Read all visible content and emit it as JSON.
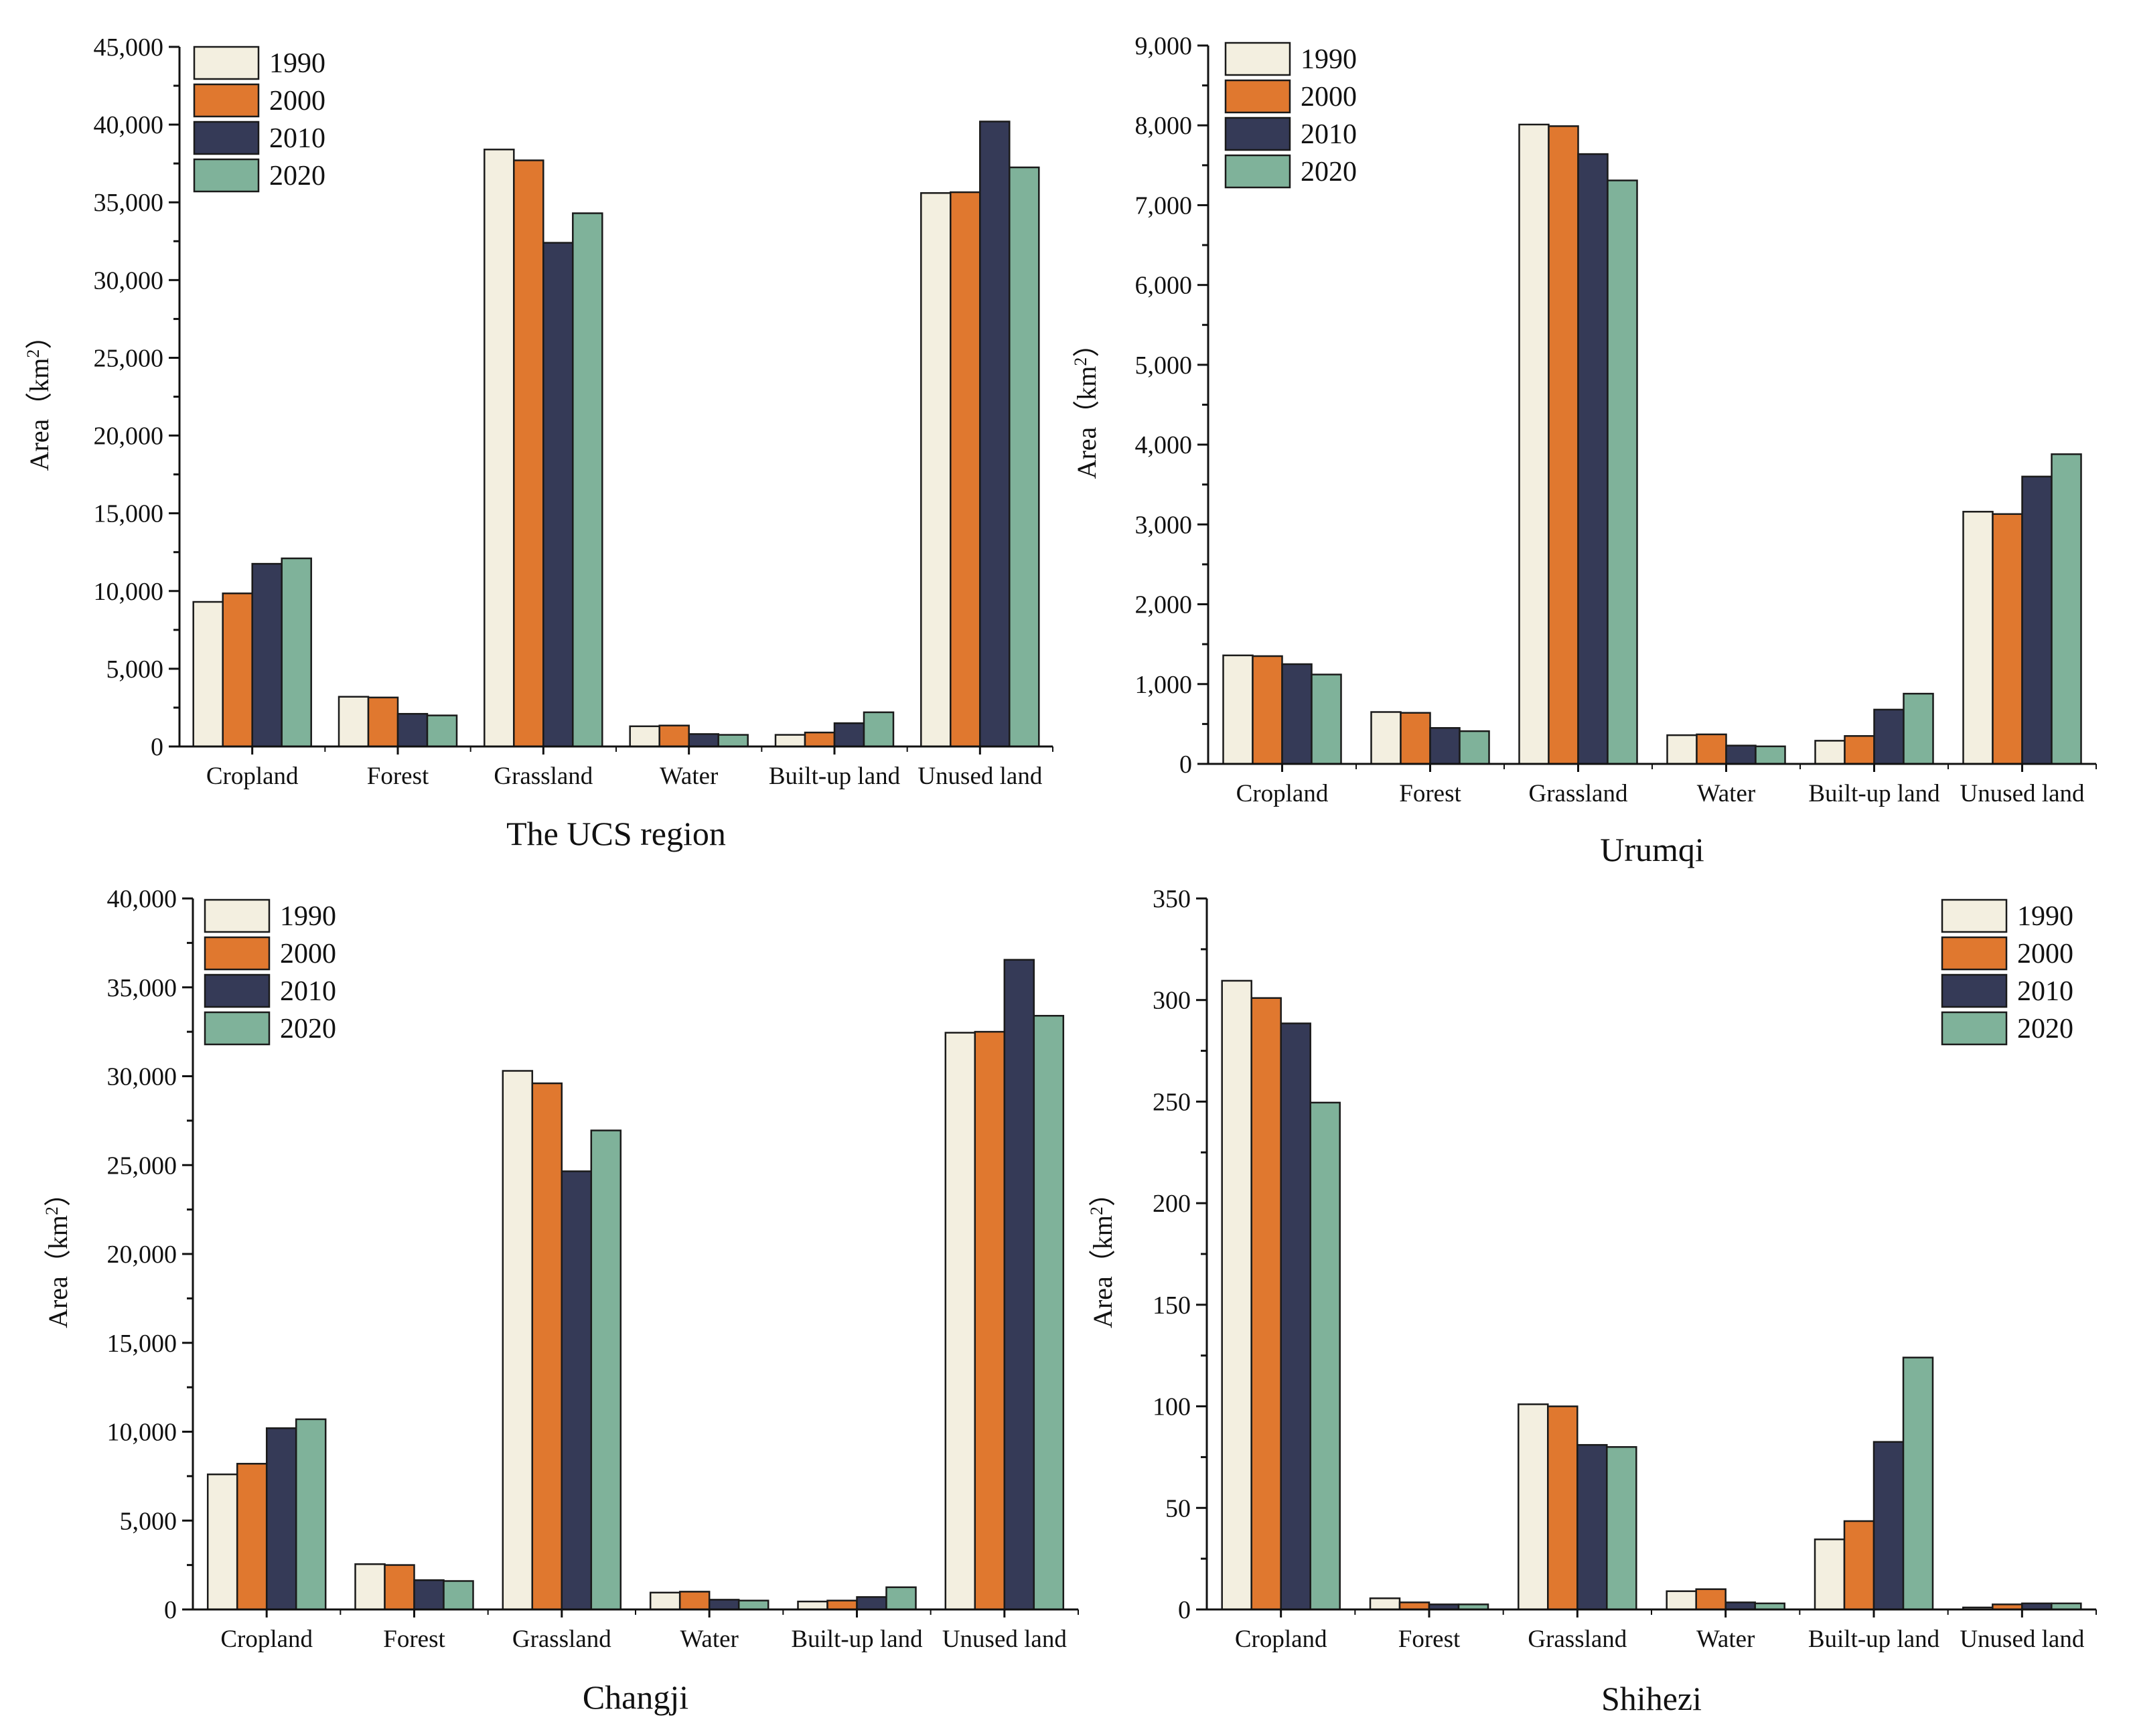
{
  "legend_labels": [
    "1990",
    "2000",
    "2010",
    "2020"
  ],
  "series_colors": [
    "#f3efe0",
    "#e0782f",
    "#353a57",
    "#7fb29a"
  ],
  "categories": [
    "Cropland",
    "Forest",
    "Grassland",
    "Water",
    "Built-up land",
    "Unused land"
  ],
  "chart_data": [
    {
      "type": "bar",
      "title": "The UCS region",
      "ylabel": "Area（km",
      "ylabel_sup": "2",
      "ylabel_close": "）",
      "ylim": [
        0,
        45000
      ],
      "yticks": [
        0,
        5000,
        10000,
        15000,
        20000,
        25000,
        30000,
        35000,
        40000,
        45000
      ],
      "ytick_labels": [
        "0",
        "5,000",
        "10,000",
        "15,000",
        "20,000",
        "25,000",
        "30,000",
        "35,000",
        "40,000",
        "45,000"
      ],
      "legend_position": "top-left",
      "series": [
        {
          "name": "1990",
          "values": [
            9300,
            3200,
            38400,
            1300,
            750,
            35600
          ]
        },
        {
          "name": "2000",
          "values": [
            9850,
            3150,
            37700,
            1350,
            900,
            35650
          ]
        },
        {
          "name": "2010",
          "values": [
            11750,
            2100,
            32400,
            800,
            1500,
            40200
          ]
        },
        {
          "name": "2020",
          "values": [
            12100,
            2000,
            34300,
            750,
            2200,
            37250
          ]
        }
      ]
    },
    {
      "type": "bar",
      "title": "Urumqi",
      "ylabel": "Area（km",
      "ylabel_sup": "2",
      "ylabel_close": "）",
      "ylim": [
        0,
        9000
      ],
      "yticks": [
        0,
        1000,
        2000,
        3000,
        4000,
        5000,
        6000,
        7000,
        8000,
        9000
      ],
      "ytick_labels": [
        "0",
        "1,000",
        "2,000",
        "3,000",
        "4,000",
        "5,000",
        "6,000",
        "7,000",
        "8,000",
        "9,000"
      ],
      "legend_position": "top-left",
      "series": [
        {
          "name": "1990",
          "values": [
            1360,
            650,
            8010,
            360,
            290,
            3160
          ]
        },
        {
          "name": "2000",
          "values": [
            1350,
            640,
            7990,
            370,
            350,
            3130
          ]
        },
        {
          "name": "2010",
          "values": [
            1250,
            450,
            7640,
            230,
            680,
            3600
          ]
        },
        {
          "name": "2020",
          "values": [
            1120,
            410,
            7310,
            220,
            880,
            3880
          ]
        }
      ]
    },
    {
      "type": "bar",
      "title": "Changji",
      "ylabel": "Area（km",
      "ylabel_sup": "2",
      "ylabel_close": "）",
      "ylim": [
        0,
        40000
      ],
      "yticks": [
        0,
        5000,
        10000,
        15000,
        20000,
        25000,
        30000,
        35000,
        40000
      ],
      "ytick_labels": [
        "0",
        "5,000",
        "10,000",
        "15,000",
        "20,000",
        "25,000",
        "30,000",
        "35,000",
        "40,000"
      ],
      "legend_position": "top-left",
      "series": [
        {
          "name": "1990",
          "values": [
            7600,
            2550,
            30300,
            950,
            450,
            32450
          ]
        },
        {
          "name": "2000",
          "values": [
            8200,
            2500,
            29600,
            1000,
            500,
            32500
          ]
        },
        {
          "name": "2010",
          "values": [
            10200,
            1650,
            24650,
            550,
            700,
            36550
          ]
        },
        {
          "name": "2020",
          "values": [
            10700,
            1600,
            26950,
            500,
            1250,
            33400
          ]
        }
      ]
    },
    {
      "type": "bar",
      "title": "Shihezi",
      "ylabel": "Area（km",
      "ylabel_sup": "2",
      "ylabel_close": "）",
      "ylim": [
        0,
        350
      ],
      "yticks": [
        0,
        50,
        100,
        150,
        200,
        250,
        300,
        350
      ],
      "ytick_labels": [
        "0",
        "50",
        "100",
        "150",
        "200",
        "250",
        "300",
        "350"
      ],
      "legend_position": "top-right",
      "series": [
        {
          "name": "1990",
          "values": [
            309.5,
            5.5,
            101,
            9,
            34.5,
            1
          ]
        },
        {
          "name": "2000",
          "values": [
            301,
            3.5,
            100,
            10,
            43.5,
            2.5
          ]
        },
        {
          "name": "2010",
          "values": [
            288.5,
            2.5,
            81,
            3.5,
            82.5,
            3
          ]
        },
        {
          "name": "2020",
          "values": [
            249.5,
            2.5,
            80,
            3,
            124,
            3
          ]
        }
      ]
    }
  ]
}
